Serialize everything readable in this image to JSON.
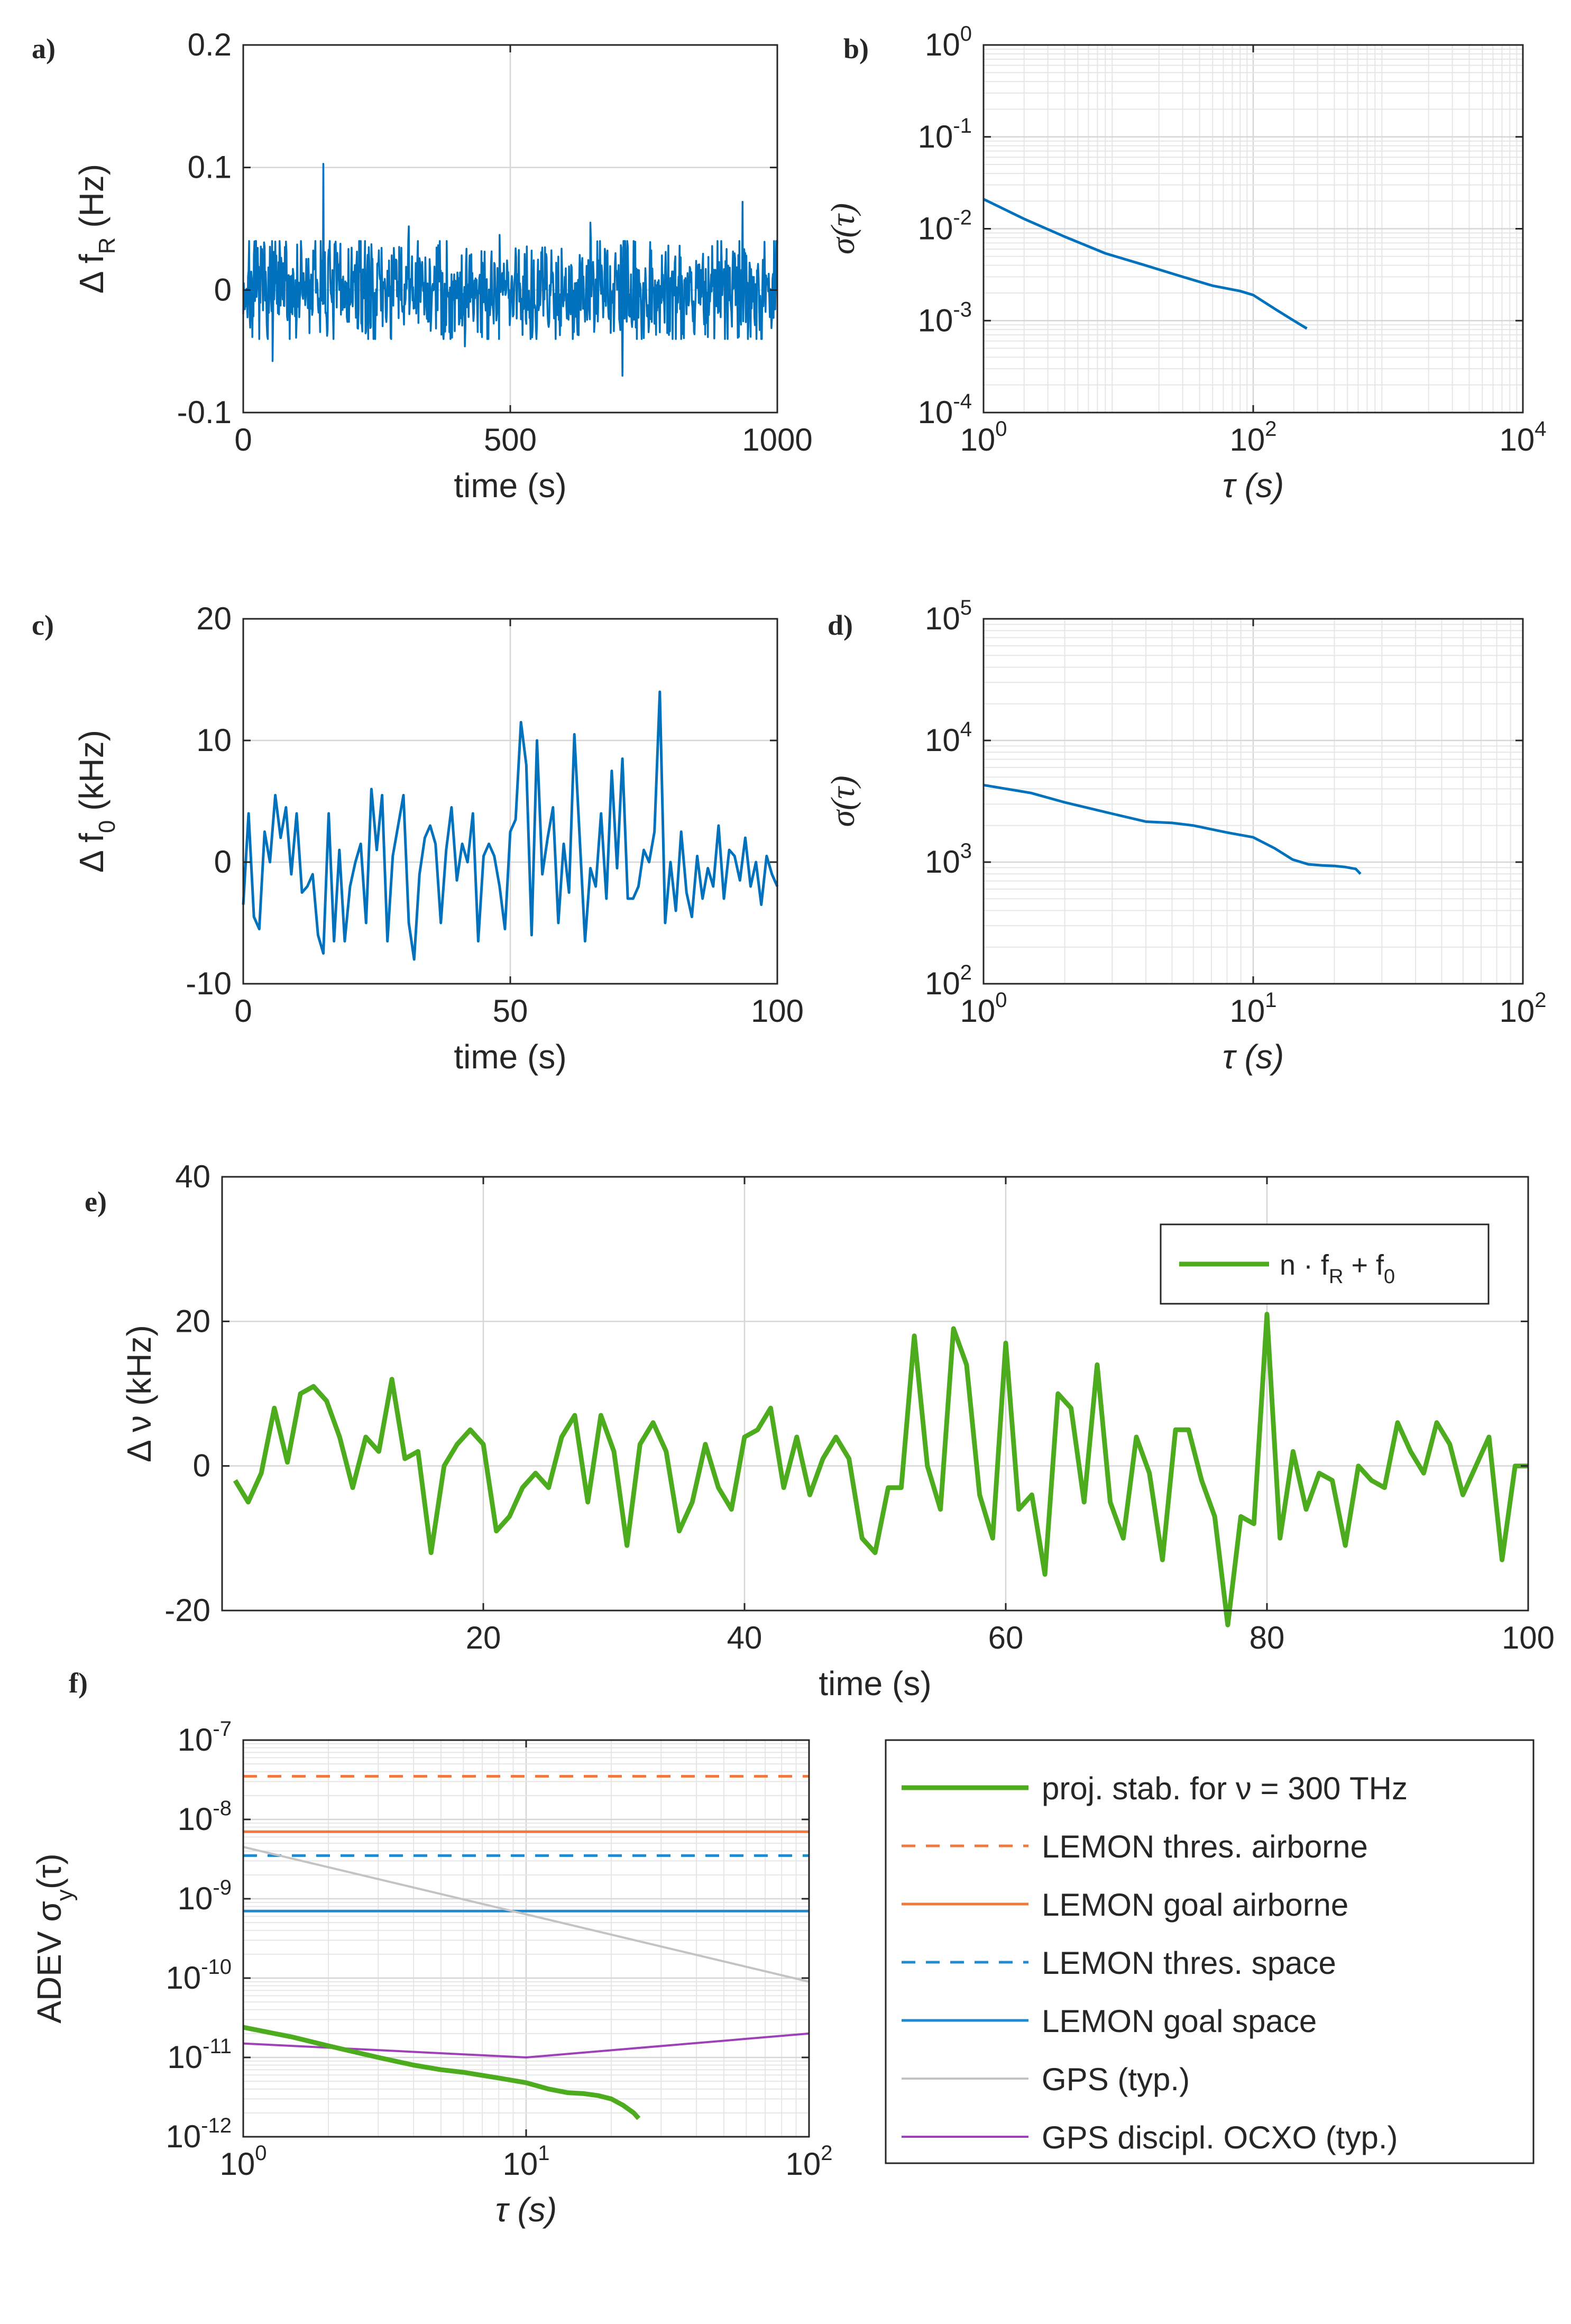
{
  "chart_data": [
    {
      "id": "a",
      "type": "line",
      "panel_label": "a)",
      "xscale": "linear",
      "yscale": "linear",
      "xlim": [
        0,
        1000
      ],
      "ylim": [
        -0.1,
        0.2
      ],
      "xticks": [
        0,
        500,
        1000
      ],
      "xtick_labels": [
        "0",
        "500",
        "1000"
      ],
      "yticks": [
        -0.1,
        0,
        0.1,
        0.2
      ],
      "ytick_labels": [
        "-0.1",
        "0",
        "0.1",
        "0.2"
      ],
      "xlabel": "time (s)",
      "ylabel_main": "Δ f",
      "ylabel_sub": "R",
      "ylabel_unit": " (Hz)",
      "grid": true,
      "noise": {
        "n": 1000,
        "amplitude": 0.022,
        "clip": 0.04,
        "seed": 7
      },
      "spikes": [
        {
          "x": 150,
          "y": 0.103
        },
        {
          "x": 310,
          "y": 0.052
        },
        {
          "x": 650,
          "y": 0.055
        },
        {
          "x": 935,
          "y": 0.072
        },
        {
          "x": 480,
          "y": 0.045
        },
        {
          "x": 710,
          "y": -0.07
        },
        {
          "x": 55,
          "y": -0.058
        },
        {
          "x": 415,
          "y": -0.046
        }
      ],
      "series": [
        {
          "name": "Δ fR",
          "color": "#0072bd"
        }
      ]
    },
    {
      "id": "b",
      "type": "line",
      "panel_label": "b)",
      "xscale": "log",
      "yscale": "log",
      "xlim": [
        1,
        10000
      ],
      "ylim": [
        0.0001,
        1
      ],
      "xticks": [
        1,
        100,
        10000
      ],
      "xtick_base": [
        "10",
        "10",
        "10"
      ],
      "xtick_exp": [
        "0",
        "2",
        "4"
      ],
      "yticks": [
        0.0001,
        0.001,
        0.01,
        0.1,
        1
      ],
      "ytick_base": [
        "10",
        "10",
        "10",
        "10",
        "10"
      ],
      "ytick_exp": [
        "-4",
        "-3",
        "-2",
        "-1",
        "0"
      ],
      "xlabel": "τ (s)",
      "ylabel": "σ(τ)",
      "grid": true,
      "series": [
        {
          "name": "σ(τ)",
          "color": "#0072bd",
          "x": [
            1,
            2,
            4,
            8,
            15,
            20,
            30,
            50,
            80,
            100,
            150,
            200,
            250
          ],
          "y": [
            0.021,
            0.0128,
            0.0082,
            0.0054,
            0.0041,
            0.0036,
            0.003,
            0.0024,
            0.0021,
            0.0019,
            0.0013,
            0.001,
            0.00082
          ]
        }
      ]
    },
    {
      "id": "c",
      "type": "line",
      "panel_label": "c)",
      "xscale": "linear",
      "yscale": "linear",
      "xlim": [
        0,
        100
      ],
      "ylim": [
        -10,
        20
      ],
      "xticks": [
        0,
        50,
        100
      ],
      "xtick_labels": [
        "0",
        "50",
        "100"
      ],
      "yticks": [
        -10,
        0,
        10,
        20
      ],
      "ytick_labels": [
        "-10",
        "0",
        "10",
        "20"
      ],
      "xlabel": "time (s)",
      "ylabel_main": "Δ f",
      "ylabel_sub": "0",
      "ylabel_unit": " (kHz)",
      "grid": true,
      "series": [
        {
          "name": "Δ f0",
          "color": "#0072bd",
          "x": [
            0,
            1,
            2,
            3,
            4,
            5,
            6,
            7,
            8,
            9,
            10,
            11,
            12,
            13,
            14,
            15,
            16,
            17,
            18,
            19,
            20,
            21,
            22,
            23,
            24,
            25,
            26,
            27,
            28,
            29,
            30,
            31,
            32,
            33,
            34,
            35,
            36,
            37,
            38,
            39,
            40,
            41,
            42,
            43,
            44,
            45,
            46,
            47,
            48,
            49,
            50,
            51,
            52,
            53,
            54,
            55,
            56,
            57,
            58,
            59,
            60,
            61,
            62,
            63,
            64,
            65,
            66,
            67,
            68,
            69,
            70,
            71,
            72,
            73,
            74,
            75,
            76,
            77,
            78,
            79,
            80,
            81,
            82,
            83,
            84,
            85,
            86,
            87,
            88,
            89,
            90,
            91,
            92,
            93,
            94,
            95,
            96,
            97,
            98,
            99,
            100
          ],
          "y": [
            -3.5,
            4.0,
            -4.5,
            -5.5,
            2.5,
            0.0,
            5.5,
            2.0,
            4.5,
            -1.0,
            4.0,
            -2.5,
            -2.0,
            -1.0,
            -6.0,
            -7.5,
            4.0,
            -6.5,
            1.0,
            -6.5,
            -2.0,
            0.0,
            1.5,
            -5.0,
            6.0,
            1.0,
            5.5,
            -6.5,
            0.5,
            3.0,
            5.5,
            -5.0,
            -8.0,
            -1.0,
            2.0,
            3.0,
            1.5,
            -5.0,
            1.0,
            4.5,
            -1.5,
            1.5,
            0.0,
            4.0,
            -6.5,
            0.5,
            1.5,
            0.5,
            -2.0,
            -5.5,
            2.5,
            3.5,
            11.5,
            8.0,
            -6.0,
            10.0,
            -1.0,
            2.0,
            4.5,
            -5.0,
            1.5,
            -2.5,
            10.5,
            2.0,
            -6.5,
            -0.5,
            -2.0,
            4.0,
            -3.0,
            7.5,
            -0.5,
            8.5,
            -3.0,
            -3.0,
            -2.0,
            1.0,
            0.0,
            2.5,
            14.0,
            -5.0,
            0.0,
            -4.0,
            2.5,
            -2.5,
            -4.5,
            0.5,
            -3.0,
            -0.5,
            -2.0,
            3.0,
            -3.0,
            1.0,
            0.5,
            -1.5,
            2.0,
            -2.0,
            0.0,
            -3.5,
            0.5,
            -1.0,
            -2.0
          ]
        }
      ]
    },
    {
      "id": "d",
      "type": "line",
      "panel_label": "d)",
      "xscale": "log",
      "yscale": "log",
      "xlim": [
        1,
        100
      ],
      "ylim": [
        100,
        100000
      ],
      "xticks": [
        1,
        10,
        100
      ],
      "xtick_base": [
        "10",
        "10",
        "10"
      ],
      "xtick_exp": [
        "0",
        "1",
        "2"
      ],
      "yticks": [
        100,
        1000,
        10000,
        100000
      ],
      "ytick_base": [
        "10",
        "10",
        "10",
        "10"
      ],
      "ytick_exp": [
        "2",
        "3",
        "4",
        "5"
      ],
      "xlabel": "τ (s)",
      "ylabel": "σ(τ)",
      "grid": true,
      "series": [
        {
          "name": "σ(τ)",
          "color": "#0072bd",
          "x": [
            1,
            1.5,
            2,
            3,
            4,
            5,
            6,
            8,
            10,
            12,
            14,
            16,
            18,
            20,
            22,
            24,
            25
          ],
          "y": [
            4300,
            3700,
            3100,
            2500,
            2150,
            2100,
            2000,
            1750,
            1600,
            1300,
            1050,
            960,
            940,
            930,
            910,
            880,
            800
          ]
        }
      ]
    },
    {
      "id": "e",
      "type": "line",
      "panel_label": "e)",
      "xscale": "linear",
      "yscale": "linear",
      "xlim": [
        0,
        100
      ],
      "ylim": [
        -20,
        40
      ],
      "xticks": [
        20,
        40,
        60,
        80,
        100
      ],
      "xtick_labels": [
        "20",
        "40",
        "60",
        "80",
        "100"
      ],
      "yticks": [
        -20,
        0,
        20,
        40
      ],
      "ytick_labels": [
        "-20",
        "0",
        "20",
        "40"
      ],
      "xlabel": "time (s)",
      "ylabel_main": "Δ ν",
      "ylabel_unit": " (kHz)",
      "grid": true,
      "legend_label": "n · f",
      "legend_sub1": "R",
      "legend_mid": " + f",
      "legend_sub2": "0",
      "series": [
        {
          "name": "n · fR + f0",
          "color": "#4dab1e",
          "x": [
            1,
            2,
            3,
            4,
            5,
            6,
            7,
            8,
            9,
            10,
            11,
            12,
            13,
            14,
            15,
            16,
            17,
            18,
            19,
            20,
            21,
            22,
            23,
            24,
            25,
            26,
            27,
            28,
            29,
            30,
            31,
            32,
            33,
            34,
            35,
            36,
            37,
            38,
            39,
            40,
            41,
            42,
            43,
            44,
            45,
            46,
            47,
            48,
            49,
            50,
            51,
            52,
            53,
            54,
            55,
            56,
            57,
            58,
            59,
            60,
            61,
            62,
            63,
            64,
            65,
            66,
            67,
            68,
            69,
            70,
            71,
            72,
            73,
            74,
            75,
            76,
            77,
            78,
            79,
            80,
            81,
            82,
            83,
            84,
            85,
            86,
            87,
            88,
            89,
            90,
            91,
            92,
            93,
            94,
            95,
            96,
            97,
            98,
            99,
            100
          ],
          "y": [
            -2.0,
            -5.0,
            -1.0,
            8.0,
            0.5,
            10.0,
            11.0,
            9.0,
            4.0,
            -3.0,
            4.0,
            2.0,
            12.0,
            1.0,
            2.0,
            -12.0,
            0.0,
            3.0,
            5.0,
            3.0,
            -9.0,
            -7.0,
            -3.0,
            -1.0,
            -3.0,
            4.0,
            7.0,
            -5.0,
            7.0,
            2.0,
            -11.0,
            3.0,
            6.0,
            2.0,
            -9.0,
            -5.0,
            3.0,
            -3.0,
            -6.0,
            4.0,
            5.0,
            8.0,
            -3.0,
            4.0,
            -4.0,
            1.0,
            4.0,
            1.0,
            -10.0,
            -12.0,
            -3.0,
            -3.0,
            18.0,
            0.0,
            -6.0,
            19.0,
            14.0,
            -4.0,
            -10.0,
            17.0,
            -6.0,
            -4.0,
            -15.0,
            10.0,
            8.0,
            -5.0,
            14.0,
            -5.0,
            -10.0,
            4.0,
            -1.0,
            -13.0,
            5.0,
            5.0,
            -2.0,
            -7.0,
            -22.0,
            -7.0,
            -8.0,
            21.0,
            -10.0,
            2.0,
            -6.0,
            -1.0,
            -2.0,
            -11.0,
            0.0,
            -2.0,
            -3.0,
            6.0,
            2.0,
            -1.0,
            6.0,
            3.0,
            -4.0,
            0.0,
            4.0,
            -13.0,
            0.0,
            0.0
          ]
        }
      ]
    },
    {
      "id": "f",
      "type": "line",
      "panel_label": "f)",
      "xscale": "log",
      "yscale": "log",
      "xlim": [
        1,
        100
      ],
      "ylim": [
        1e-12,
        1e-07
      ],
      "xticks": [
        1,
        10,
        100
      ],
      "xtick_base": [
        "10",
        "10",
        "10"
      ],
      "xtick_exp": [
        "0",
        "1",
        "2"
      ],
      "yticks": [
        1e-12,
        1e-11,
        1e-10,
        1e-09,
        1e-08,
        1e-07
      ],
      "ytick_base": [
        "10",
        "10",
        "10",
        "10",
        "10",
        "10"
      ],
      "ytick_exp": [
        "-12",
        "-11",
        "-10",
        "-9",
        "-8",
        "-7"
      ],
      "xlabel": "τ (s)",
      "ylabel_main": "ADEV σ",
      "ylabel_sub": "y",
      "ylabel_tail": "(τ)",
      "grid": true,
      "series": [
        {
          "name": "proj. stab. for ν = 300 THz",
          "color": "#4dab1e",
          "style": "solid",
          "width": 9,
          "x": [
            1,
            1.5,
            2,
            3,
            4,
            5,
            6,
            8,
            10,
            12,
            14,
            16,
            18,
            20,
            22,
            24,
            25
          ],
          "y": [
            2.4e-11,
            1.8e-11,
            1.4e-11,
            1e-11,
            8e-12,
            7e-12,
            6.5e-12,
            5.5e-12,
            4.8e-12,
            4e-12,
            3.6e-12,
            3.5e-12,
            3.3e-12,
            3e-12,
            2.5e-12,
            2e-12,
            1.7e-12
          ]
        },
        {
          "name": "LEMON thres. airborne",
          "color": "#f0783c",
          "style": "dashed",
          "width": 5,
          "x": [
            1,
            100
          ],
          "y": [
            3.5e-08,
            3.5e-08
          ]
        },
        {
          "name": "LEMON goal airborne",
          "color": "#f0783c",
          "style": "solid",
          "width": 5,
          "x": [
            1,
            100
          ],
          "y": [
            7e-09,
            7e-09
          ]
        },
        {
          "name": "LEMON thres. space",
          "color": "#1f8ad0",
          "style": "dashed",
          "width": 5,
          "x": [
            1,
            100
          ],
          "y": [
            3.5e-09,
            3.5e-09
          ]
        },
        {
          "name": "LEMON goal space",
          "color": "#1f8ad0",
          "style": "solid",
          "width": 5,
          "x": [
            1,
            100
          ],
          "y": [
            7e-10,
            7e-10
          ]
        },
        {
          "name": "GPS (typ.)",
          "color": "#c3c3c3",
          "style": "solid",
          "width": 4,
          "x": [
            1,
            100
          ],
          "y": [
            4.5e-09,
            9e-11
          ]
        },
        {
          "name": "GPS discipl. OCXO (typ.)",
          "color": "#a040b8",
          "style": "solid",
          "width": 4,
          "x": [
            1,
            10,
            100
          ],
          "y": [
            1.5e-11,
            1e-11,
            2e-11
          ]
        }
      ]
    }
  ]
}
